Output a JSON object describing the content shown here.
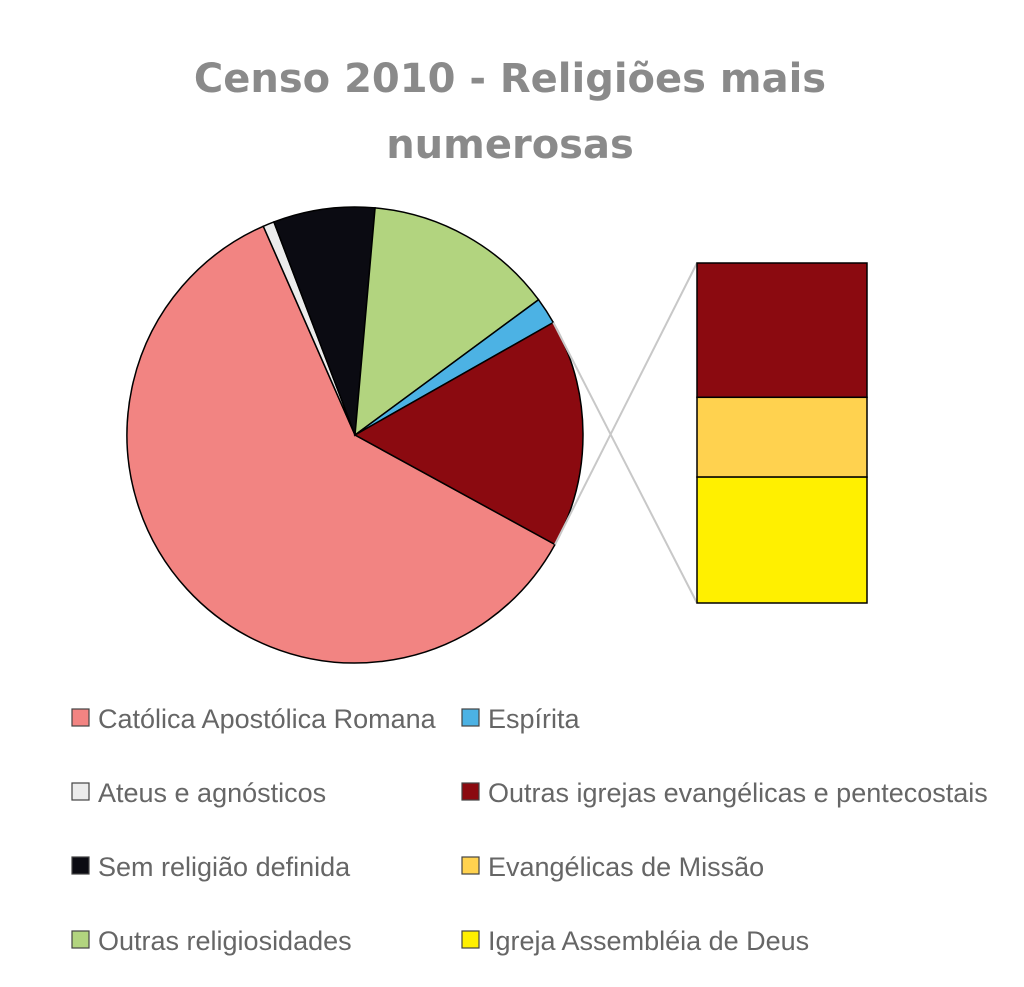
{
  "chart_data": {
    "type": "pie",
    "subtype": "pie-of-bar",
    "title_lines": [
      "Censo 2010 - Religiões mais",
      "numerosas"
    ],
    "unit": "percent (estimated)",
    "pie_slices": [
      {
        "name": "Católica Apostólica Romana",
        "value": 60.5,
        "color": "#f28482"
      },
      {
        "name": "Ateus e agnósticos",
        "value": 0.8,
        "color": "#ececec"
      },
      {
        "name": "Sem religião definida",
        "value": 7.2,
        "color": "#0b0b12"
      },
      {
        "name": "Outras religiosidades",
        "value": 13.5,
        "color": "#b2d47f"
      },
      {
        "name": "Espírita",
        "value": 1.9,
        "color": "#4cb2e4"
      }
    ],
    "bar_segments": [
      {
        "name": "Outras igrejas evangélicas e pentecostais",
        "value": 6.4,
        "color": "#8b0a10"
      },
      {
        "name": "Evangélicas de Missão",
        "value": 3.8,
        "color": "#ffd24f"
      },
      {
        "name": "Igreja  Assembléia de Deus",
        "value": 6.0,
        "color": "#fff000"
      }
    ],
    "legend": [
      "Católica Apostólica Romana",
      "Espírita",
      "Ateus e agnósticos",
      "Outras igrejas evangélicas e pentecostais",
      "Sem religião definida",
      "Evangélicas de Missão",
      "Outras religiosidades",
      "Igreja  Assembléia de Deus"
    ],
    "legend_colors": [
      "#f28482",
      "#4cb2e4",
      "#ececec",
      "#8b0a10",
      "#0b0b12",
      "#ffd24f",
      "#b2d47f",
      "#fff000"
    ],
    "legend_position": "bottom",
    "start_angle_deg": 118.7
  }
}
